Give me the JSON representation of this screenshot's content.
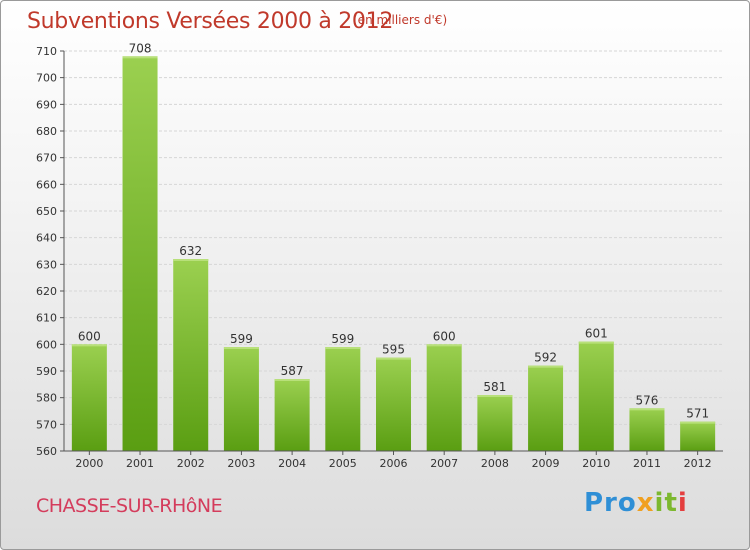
{
  "title": "Subventions Versées 2000 à 2012",
  "unit_note": "(en milliers d'€)",
  "commune": "CHASSE-SUR-RHôNE",
  "logo": {
    "text": "Proxiti",
    "parts": [
      "Pro",
      "x",
      "it",
      "i"
    ]
  },
  "colors": {
    "bar_top": "#9bd050",
    "bar_bottom": "#5a9e12",
    "title": "#c0392b",
    "commune": "#d43c5c"
  },
  "chart_data": {
    "type": "bar",
    "categories": [
      "2000",
      "2001",
      "2002",
      "2003",
      "2004",
      "2005",
      "2006",
      "2007",
      "2008",
      "2009",
      "2010",
      "2011",
      "2012"
    ],
    "values": [
      600,
      708,
      632,
      599,
      587,
      599,
      595,
      600,
      581,
      592,
      601,
      576,
      571
    ],
    "ylim": [
      560,
      710
    ],
    "yticks": [
      560,
      570,
      580,
      590,
      600,
      610,
      620,
      630,
      640,
      650,
      660,
      670,
      680,
      690,
      700,
      710
    ],
    "grid": true,
    "title": "Subventions Versées 2000 à 2012",
    "xlabel": "",
    "ylabel": ""
  }
}
